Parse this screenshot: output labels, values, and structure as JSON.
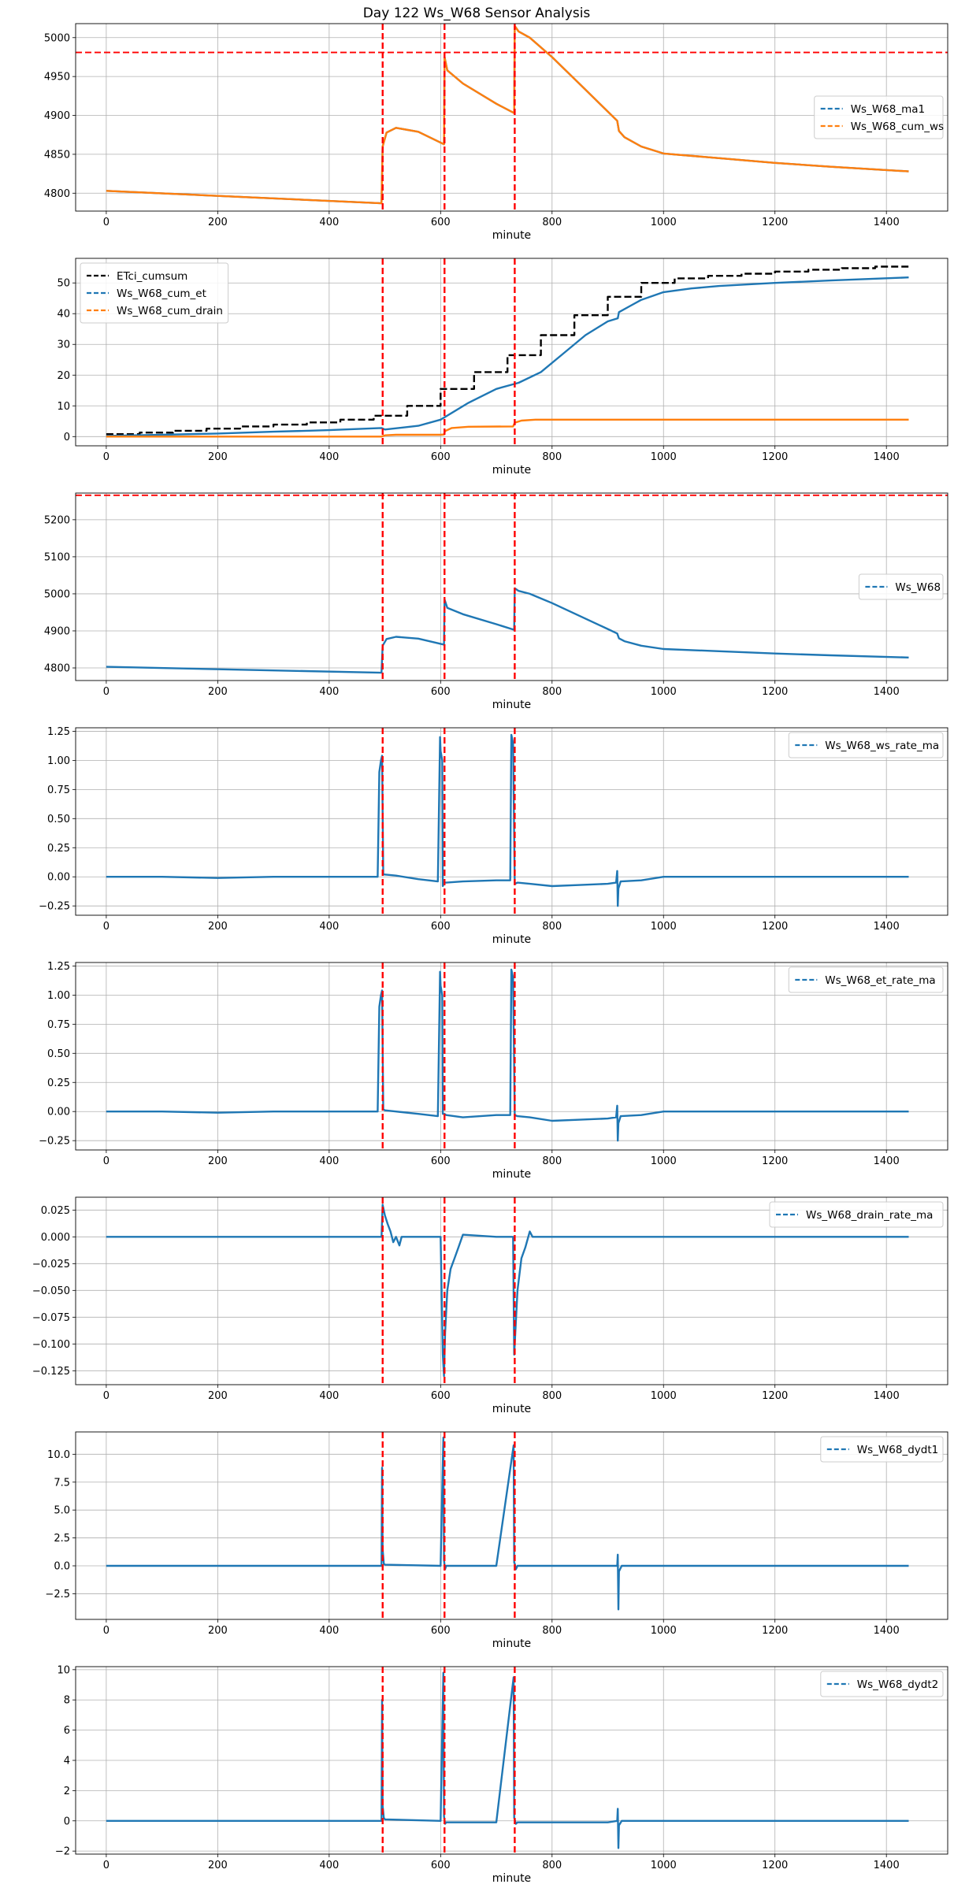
{
  "figure": {
    "title": "Day 122 Ws_W68 Sensor Analysis"
  },
  "colors": {
    "blue": "#1f77b4",
    "orange": "#ff7f0e",
    "black": "#000000",
    "red": "#ff0000",
    "grid": "#b0b0b0"
  },
  "chart_data": [
    {
      "type": "line",
      "xlabel": "minute",
      "xlim": [
        -55,
        1510
      ],
      "ylim": [
        4777,
        5018
      ],
      "xticks": [
        0,
        200,
        400,
        600,
        800,
        1000,
        1200,
        1400
      ],
      "yticks": [
        4800,
        4850,
        4900,
        4950,
        5000
      ],
      "ytick_labels": [
        "4800",
        "4850",
        "4900",
        "4950",
        "5000"
      ],
      "grid": true,
      "legend": {
        "placement": "center-right",
        "entries": [
          "Ws_W68_ma1",
          "Ws_W68_cum_ws"
        ]
      },
      "vlines": [
        496,
        607,
        733
      ],
      "hlines": [
        4981
      ],
      "series": [
        {
          "name": "Ws_W68_ma1",
          "color": "blue",
          "style": "dashed",
          "x": [
            0,
            494,
            496,
            503,
            520,
            560,
            600,
            606,
            607,
            612,
            640,
            700,
            732,
            733,
            740,
            760,
            800,
            850,
            900,
            917,
            920,
            930,
            960,
            1000,
            1100,
            1200,
            1300,
            1440
          ],
          "y": [
            4803,
            4787,
            4860,
            4878,
            4884,
            4879,
            4865,
            4863,
            4975,
            4958,
            4941,
            4915,
            4903,
            5015,
            5008,
            5000,
            4975,
            4940,
            4905,
            4893,
            4880,
            4872,
            4860,
            4851,
            4845,
            4839,
            4834,
            4828
          ]
        },
        {
          "name": "Ws_W68_cum_ws",
          "color": "orange",
          "style": "dashed",
          "x": [
            0,
            494,
            496,
            503,
            520,
            560,
            600,
            606,
            607,
            612,
            640,
            700,
            732,
            733,
            740,
            760,
            800,
            850,
            900,
            917,
            920,
            930,
            960,
            1000,
            1100,
            1200,
            1300,
            1440
          ],
          "y": [
            4803,
            4787,
            4860,
            4878,
            4884,
            4879,
            4865,
            4863,
            4975,
            4958,
            4941,
            4915,
            4903,
            5015,
            5008,
            5000,
            4975,
            4940,
            4905,
            4893,
            4880,
            4872,
            4860,
            4851,
            4845,
            4839,
            4834,
            4828
          ]
        }
      ]
    },
    {
      "type": "line",
      "xlabel": "minute",
      "xlim": [
        -55,
        1510
      ],
      "ylim": [
        -3,
        58
      ],
      "xticks": [
        0,
        200,
        400,
        600,
        800,
        1000,
        1200,
        1400
      ],
      "yticks": [
        0,
        10,
        20,
        30,
        40,
        50
      ],
      "ytick_labels": [
        "0",
        "10",
        "20",
        "30",
        "40",
        "50"
      ],
      "grid": true,
      "legend": {
        "placement": "upper-left",
        "entries": [
          "ETci_cumsum",
          "Ws_W68_cum_et",
          "Ws_W68_cum_drain"
        ]
      },
      "vlines": [
        496,
        607,
        733
      ],
      "hlines": [],
      "series": [
        {
          "name": "ETci_cumsum",
          "color": "black",
          "style": "dashed",
          "step": true,
          "x": [
            0,
            60,
            120,
            180,
            240,
            300,
            360,
            420,
            480,
            540,
            600,
            660,
            720,
            780,
            840,
            900,
            960,
            1020,
            1080,
            1140,
            1200,
            1260,
            1320,
            1380,
            1440
          ],
          "y": [
            0.8,
            1.3,
            1.9,
            2.6,
            3.3,
            3.9,
            4.6,
            5.5,
            6.8,
            10.0,
            15.5,
            21.0,
            26.5,
            33.0,
            39.5,
            45.5,
            50.0,
            51.5,
            52.3,
            53.0,
            53.7,
            54.3,
            54.8,
            55.3,
            55.7
          ]
        },
        {
          "name": "Ws_W68_cum_et",
          "color": "blue",
          "style": "dashed",
          "x": [
            0,
            100,
            200,
            300,
            400,
            480,
            494,
            500,
            560,
            600,
            650,
            700,
            740,
            780,
            820,
            860,
            900,
            918,
            920,
            940,
            960,
            1000,
            1050,
            1100,
            1200,
            1300,
            1440
          ],
          "y": [
            0.2,
            0.6,
            1.0,
            1.6,
            2.1,
            2.7,
            2.8,
            2.3,
            3.5,
            5.5,
            11.0,
            15.5,
            17.5,
            21.0,
            27.0,
            33.0,
            37.5,
            38.5,
            40.5,
            42.5,
            44.5,
            47.0,
            48.2,
            49.0,
            50.0,
            50.8,
            51.8
          ]
        },
        {
          "name": "Ws_W68_cum_drain",
          "color": "orange",
          "style": "dashed",
          "x": [
            0,
            494,
            500,
            520,
            600,
            606,
            608,
            620,
            650,
            730,
            733,
            745,
            770,
            1440
          ],
          "y": [
            0,
            0,
            0.4,
            0.6,
            0.6,
            0.7,
            1.8,
            2.8,
            3.2,
            3.3,
            4.5,
            5.2,
            5.5,
            5.5
          ]
        }
      ]
    },
    {
      "type": "line",
      "xlabel": "minute",
      "xlim": [
        -55,
        1510
      ],
      "ylim": [
        4766,
        5272
      ],
      "xticks": [
        0,
        200,
        400,
        600,
        800,
        1000,
        1200,
        1400
      ],
      "yticks": [
        4800,
        4900,
        5000,
        5100,
        5200
      ],
      "ytick_labels": [
        "4800",
        "4900",
        "5000",
        "5100",
        "5200"
      ],
      "grid": true,
      "legend": {
        "placement": "center-right",
        "entries": [
          "Ws_W68"
        ]
      },
      "vlines": [
        496,
        607,
        733
      ],
      "hlines": [
        5266
      ],
      "series": [
        {
          "name": "Ws_W68",
          "color": "blue",
          "style": "dashed",
          "x": [
            0,
            494,
            496,
            503,
            520,
            560,
            600,
            606,
            607,
            612,
            640,
            700,
            732,
            733,
            740,
            760,
            800,
            850,
            900,
            917,
            920,
            930,
            960,
            1000,
            1100,
            1200,
            1300,
            1440
          ],
          "y": [
            4803,
            4787,
            4860,
            4878,
            4884,
            4879,
            4865,
            4863,
            4985,
            4962,
            4945,
            4918,
            4903,
            5015,
            5008,
            5000,
            4975,
            4940,
            4905,
            4893,
            4880,
            4872,
            4860,
            4851,
            4845,
            4839,
            4834,
            4828
          ]
        }
      ]
    },
    {
      "type": "line",
      "xlabel": "minute",
      "xlim": [
        -55,
        1510
      ],
      "ylim": [
        -0.33,
        1.28
      ],
      "xticks": [
        0,
        200,
        400,
        600,
        800,
        1000,
        1200,
        1400
      ],
      "yticks": [
        -0.25,
        0,
        0.25,
        0.5,
        0.75,
        1.0,
        1.25
      ],
      "ytick_labels": [
        "−0.25",
        "0.00",
        "0.25",
        "0.50",
        "0.75",
        "1.00",
        "1.25"
      ],
      "grid": true,
      "legend": {
        "placement": "upper-right",
        "entries": [
          "Ws_W68_ws_rate_ma"
        ]
      },
      "vlines": [
        496,
        607,
        733
      ],
      "hlines": [],
      "series": [
        {
          "name": "Ws_W68_ws_rate_ma",
          "color": "blue",
          "style": "dashed",
          "x": [
            0,
            100,
            200,
            300,
            400,
            487,
            490,
            493,
            495,
            497,
            500,
            520,
            560,
            595,
            599,
            600,
            603,
            604,
            607,
            610,
            640,
            700,
            725,
            727,
            730,
            733,
            738,
            760,
            800,
            850,
            900,
            915,
            917,
            918,
            919,
            921,
            923,
            960,
            1000,
            1200,
            1440
          ],
          "y": [
            0.0,
            0.0,
            -0.01,
            0.0,
            0.0,
            0.0,
            0.9,
            1.0,
            1.04,
            0.02,
            0.02,
            0.01,
            -0.02,
            -0.04,
            1.2,
            1.08,
            1.0,
            -0.08,
            -0.05,
            -0.05,
            -0.04,
            -0.03,
            -0.03,
            1.22,
            1.15,
            -0.06,
            -0.05,
            -0.06,
            -0.08,
            -0.07,
            -0.06,
            -0.05,
            0.05,
            -0.25,
            -0.1,
            -0.07,
            -0.04,
            -0.03,
            0.0,
            0.0,
            0.0
          ]
        }
      ]
    },
    {
      "type": "line",
      "xlabel": "minute",
      "xlim": [
        -55,
        1510
      ],
      "ylim": [
        -0.33,
        1.28
      ],
      "xticks": [
        0,
        200,
        400,
        600,
        800,
        1000,
        1200,
        1400
      ],
      "yticks": [
        -0.25,
        0,
        0.25,
        0.5,
        0.75,
        1.0,
        1.25
      ],
      "ytick_labels": [
        "−0.25",
        "0.00",
        "0.25",
        "0.50",
        "0.75",
        "1.00",
        "1.25"
      ],
      "grid": true,
      "legend": {
        "placement": "upper-right",
        "entries": [
          "Ws_W68_et_rate_ma"
        ]
      },
      "vlines": [
        496,
        607,
        733
      ],
      "hlines": [],
      "series": [
        {
          "name": "Ws_W68_et_rate_ma",
          "color": "blue",
          "style": "dashed",
          "x": [
            0,
            100,
            200,
            300,
            400,
            487,
            490,
            493,
            495,
            497,
            500,
            520,
            560,
            595,
            599,
            600,
            603,
            604,
            607,
            610,
            640,
            700,
            725,
            727,
            730,
            733,
            738,
            760,
            800,
            850,
            900,
            915,
            917,
            918,
            919,
            921,
            923,
            960,
            1000,
            1200,
            1440
          ],
          "y": [
            0.0,
            0.0,
            -0.01,
            0.0,
            0.0,
            0.0,
            0.9,
            1.0,
            1.04,
            0.02,
            0.01,
            0.0,
            -0.02,
            -0.04,
            1.2,
            1.08,
            1.0,
            -0.02,
            -0.02,
            -0.03,
            -0.05,
            -0.03,
            -0.03,
            1.22,
            1.15,
            -0.03,
            -0.04,
            -0.05,
            -0.08,
            -0.07,
            -0.06,
            -0.05,
            0.05,
            -0.25,
            -0.1,
            -0.07,
            -0.04,
            -0.03,
            0.0,
            0.0,
            0.0
          ]
        }
      ]
    },
    {
      "type": "line",
      "xlabel": "minute",
      "xlim": [
        -55,
        1510
      ],
      "ylim": [
        -0.138,
        0.037
      ],
      "xticks": [
        0,
        200,
        400,
        600,
        800,
        1000,
        1200,
        1400
      ],
      "yticks": [
        -0.125,
        -0.1,
        -0.075,
        -0.05,
        -0.025,
        0,
        0.025
      ],
      "ytick_labels": [
        "−0.125",
        "−0.100",
        "−0.075",
        "−0.050",
        "−0.025",
        "0.000",
        "0.025"
      ],
      "grid": true,
      "legend": {
        "placement": "upper-right",
        "entries": [
          "Ws_W68_drain_rate_ma"
        ]
      },
      "vlines": [
        496,
        607,
        733
      ],
      "hlines": [],
      "series": [
        {
          "name": "Ws_W68_drain_rate_ma",
          "color": "blue",
          "style": "dashed",
          "x": [
            0,
            494,
            496,
            500,
            505,
            510,
            515,
            520,
            526,
            530,
            600,
            604,
            606,
            608,
            612,
            618,
            625,
            632,
            640,
            700,
            730,
            732,
            734,
            738,
            745,
            752,
            760,
            765,
            1440
          ],
          "y": [
            0,
            0,
            0.03,
            0.02,
            0.012,
            0.005,
            -0.005,
            0.0,
            -0.008,
            0.0,
            0.0,
            -0.11,
            -0.13,
            -0.09,
            -0.05,
            -0.03,
            -0.02,
            -0.01,
            0.002,
            0.0,
            0.0,
            -0.11,
            -0.09,
            -0.05,
            -0.02,
            -0.01,
            0.005,
            0.0,
            0.0
          ]
        }
      ]
    },
    {
      "type": "line",
      "xlabel": "minute",
      "xlim": [
        -55,
        1510
      ],
      "ylim": [
        -4.8,
        12.0
      ],
      "xticks": [
        0,
        200,
        400,
        600,
        800,
        1000,
        1200,
        1400
      ],
      "yticks": [
        -2.5,
        0,
        2.5,
        5,
        7.5,
        10
      ],
      "ytick_labels": [
        "−2.5",
        "0.0",
        "2.5",
        "5.0",
        "7.5",
        "10.0"
      ],
      "grid": true,
      "legend": {
        "placement": "upper-right",
        "entries": [
          "Ws_W68_dydt1"
        ]
      },
      "vlines": [
        496,
        607,
        733
      ],
      "hlines": [],
      "series": [
        {
          "name": "Ws_W68_dydt1",
          "color": "blue",
          "style": "dashed",
          "x": [
            0,
            200,
            400,
            494,
            495,
            496,
            498,
            500,
            600,
            605,
            606,
            608,
            610,
            700,
            731,
            732,
            733,
            735,
            738,
            800,
            900,
            917,
            918,
            919,
            920,
            925,
            1000,
            1200,
            1440
          ],
          "y": [
            0,
            0,
            0,
            0,
            8.8,
            1.5,
            0.2,
            0.1,
            0,
            11.5,
            0.5,
            -0.3,
            0,
            0,
            10.8,
            0.3,
            0.2,
            -0.3,
            0,
            0,
            0,
            0,
            1.0,
            -3.9,
            -0.5,
            0,
            0,
            0,
            0
          ]
        }
      ]
    },
    {
      "type": "line",
      "xlabel": "minute",
      "xlim": [
        -55,
        1510
      ],
      "ylim": [
        -2.2,
        10.2
      ],
      "xticks": [
        0,
        200,
        400,
        600,
        800,
        1000,
        1200,
        1400
      ],
      "yticks": [
        -2,
        0,
        2,
        4,
        6,
        8,
        10
      ],
      "ytick_labels": [
        "−2",
        "0",
        "2",
        "4",
        "6",
        "8",
        "10"
      ],
      "grid": true,
      "legend": {
        "placement": "upper-right",
        "entries": [
          "Ws_W68_dydt2"
        ]
      },
      "vlines": [
        496,
        607,
        733
      ],
      "hlines": [],
      "series": [
        {
          "name": "Ws_W68_dydt2",
          "color": "blue",
          "style": "dashed",
          "x": [
            0,
            200,
            400,
            494,
            495,
            496,
            498,
            500,
            600,
            605,
            606,
            608,
            610,
            700,
            731,
            732,
            733,
            735,
            738,
            800,
            900,
            917,
            918,
            919,
            920,
            925,
            1000,
            1200,
            1440
          ],
          "y": [
            0,
            0,
            0,
            0,
            8.0,
            1.0,
            0.2,
            0.1,
            0,
            9.8,
            0.3,
            -0.2,
            -0.1,
            -0.1,
            9.5,
            0.2,
            0.1,
            -0.2,
            -0.1,
            -0.1,
            -0.1,
            0,
            0.8,
            -1.8,
            -0.3,
            0,
            0,
            0,
            0
          ]
        }
      ]
    }
  ]
}
